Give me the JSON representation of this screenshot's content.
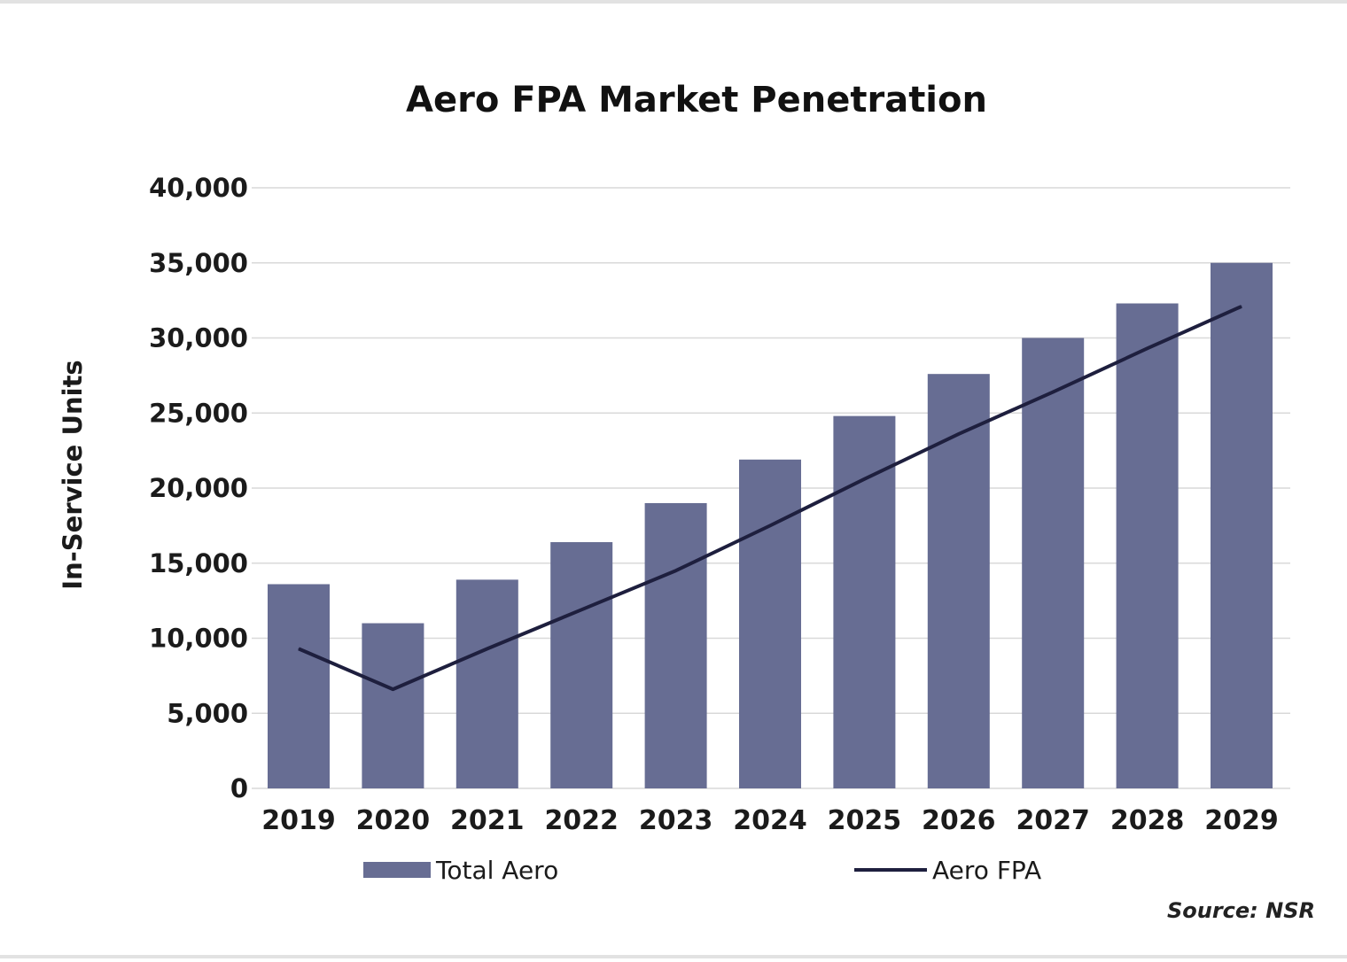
{
  "chart_data": {
    "type": "bar",
    "title": "Aero FPA Market Penetration",
    "xlabel": "",
    "ylabel": "In-Service Units",
    "categories": [
      "2019",
      "2020",
      "2021",
      "2022",
      "2023",
      "2024",
      "2025",
      "2026",
      "2027",
      "2028",
      "2029"
    ],
    "ylim": [
      0,
      40000
    ],
    "yticks": [
      "0",
      "5,000",
      "10,000",
      "15,000",
      "20,000",
      "25,000",
      "30,000",
      "35,000",
      "40,000"
    ],
    "ytick_values": [
      0,
      5000,
      10000,
      15000,
      20000,
      25000,
      30000,
      35000,
      40000
    ],
    "grid": true,
    "legend_position": "bottom",
    "series": [
      {
        "name": "Total Aero",
        "type": "bar",
        "color": "#676d93",
        "values": [
          13600,
          11000,
          13900,
          16400,
          19000,
          21900,
          24800,
          27600,
          30000,
          32300,
          35000
        ]
      },
      {
        "name": "Aero FPA",
        "type": "line",
        "color": "#1e1f3e",
        "values": [
          9300,
          6600,
          9300,
          11900,
          14500,
          17500,
          20600,
          23600,
          26400,
          29300,
          32100
        ]
      }
    ],
    "source": "Source: NSR"
  }
}
